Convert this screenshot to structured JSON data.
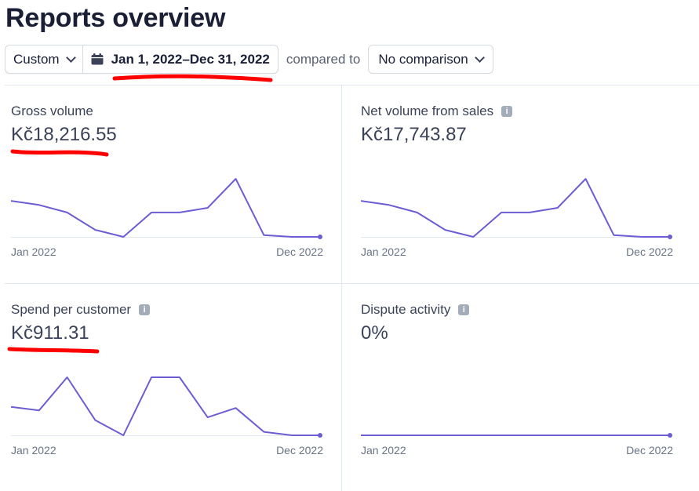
{
  "page": {
    "title": "Reports overview"
  },
  "toolbar": {
    "range_label": "Custom",
    "date_range": "Jan 1, 2022–Dec 31, 2022",
    "compared_to": "compared to",
    "comparison_label": "No comparison"
  },
  "colors": {
    "accent": "#6c5dd3",
    "annotation": "#ff0000"
  },
  "cards": [
    {
      "title": "Gross volume",
      "value": "Kč18,216.55",
      "has_info": false,
      "x_start": "Jan 2022",
      "x_end": "Dec 2022",
      "series": [
        0.62,
        0.55,
        0.42,
        0.12,
        0.0,
        0.42,
        0.42,
        0.5,
        1.0,
        0.03,
        0.0,
        0.0
      ]
    },
    {
      "title": "Net volume from sales",
      "value": "Kč17,743.87",
      "has_info": true,
      "x_start": "Jan 2022",
      "x_end": "Dec 2022",
      "series": [
        0.62,
        0.55,
        0.42,
        0.12,
        0.0,
        0.42,
        0.42,
        0.5,
        1.0,
        0.03,
        0.0,
        0.0
      ]
    },
    {
      "title": "Spend per customer",
      "value": "Kč911.31",
      "has_info": true,
      "x_start": "Jan 2022",
      "x_end": "Dec 2022",
      "series": [
        0.49,
        0.43,
        1.0,
        0.26,
        0.0,
        1.0,
        1.0,
        0.31,
        0.47,
        0.06,
        0.0,
        0.0
      ]
    },
    {
      "title": "Dispute activity",
      "value": "0%",
      "has_info": true,
      "x_start": "Jan 2022",
      "x_end": "Dec 2022",
      "series": [
        0,
        0,
        0,
        0,
        0,
        0,
        0,
        0,
        0,
        0,
        0,
        0
      ]
    }
  ]
}
